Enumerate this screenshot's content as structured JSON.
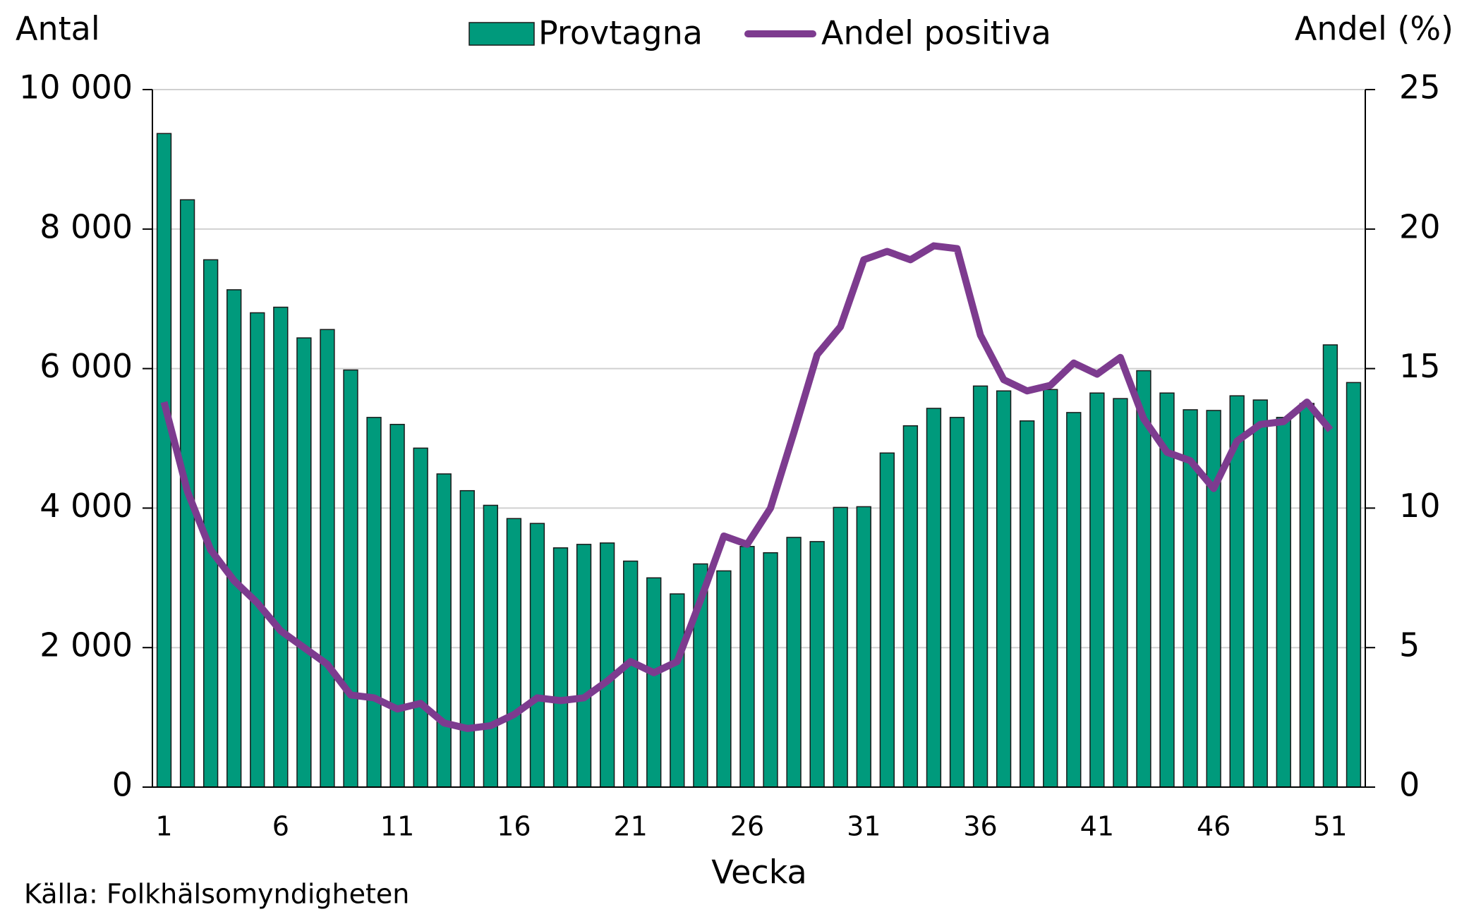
{
  "chart_data": {
    "type": "bar",
    "y_label": "Antal",
    "y2_label": "Andel (%)",
    "x_label": "Vecka",
    "source": "Källa: Folkhälsomyndigheten",
    "categories": [
      "1",
      null,
      null,
      null,
      null,
      "6",
      null,
      null,
      null,
      null,
      "11",
      null,
      null,
      null,
      null,
      "16",
      null,
      null,
      null,
      null,
      "21",
      null,
      null,
      null,
      null,
      "26",
      null,
      null,
      null,
      null,
      "31",
      null,
      null,
      null,
      null,
      "36",
      null,
      null,
      null,
      null,
      "41",
      null,
      null,
      null,
      null,
      "46",
      null,
      null,
      null,
      null,
      "51",
      null
    ],
    "series": [
      {
        "name": "Provtagna",
        "type": "bar",
        "color": "#009a7c",
        "values": [
          9370,
          8420,
          7560,
          7130,
          6800,
          6880,
          6440,
          6560,
          5980,
          5300,
          5200,
          4860,
          4490,
          4250,
          4040,
          3850,
          3780,
          3430,
          3480,
          3500,
          3240,
          3000,
          2770,
          3200,
          3100,
          3450,
          3360,
          3580,
          3520,
          4010,
          4020,
          4790,
          5180,
          5430,
          5300,
          5750,
          5680,
          5250,
          5700,
          5370,
          5650,
          5570,
          5970,
          5650,
          5410,
          5400,
          5610,
          5550,
          5300,
          5500,
          6340,
          5800
        ]
      },
      {
        "name": "Andel positiva",
        "type": "line",
        "axis": "y2",
        "color": "#7d3b8f",
        "values": [
          13.8,
          10.6,
          8.5,
          7.4,
          6.6,
          5.6,
          5.0,
          4.4,
          3.3,
          3.2,
          2.8,
          3.0,
          2.3,
          2.1,
          2.2,
          2.6,
          3.2,
          3.1,
          3.2,
          3.8,
          4.5,
          4.1,
          4.5,
          6.7,
          9.0,
          8.7,
          10.0,
          12.7,
          15.5,
          16.5,
          18.9,
          19.2,
          18.9,
          19.4,
          19.3,
          16.2,
          14.6,
          14.2,
          14.4,
          15.2,
          14.8,
          15.4,
          13.2,
          12.0,
          11.7,
          10.7,
          12.4,
          13.0,
          13.1,
          13.8,
          12.8,
          null
        ]
      }
    ],
    "ylim": [
      0,
      10000
    ],
    "yticks": [
      0,
      {
        "value": 2000,
        "label": "2 000"
      },
      {
        "value": 4000,
        "label": "4 000"
      },
      {
        "value": 6000,
        "label": "6 000"
      },
      {
        "value": 8000,
        "label": "8 000"
      },
      {
        "value": 10000,
        "label": "10 000"
      }
    ],
    "y2lim": [
      0,
      25
    ],
    "y2ticks": [
      0,
      5,
      10,
      15,
      20,
      25
    ],
    "grid": true,
    "legend": "top"
  }
}
